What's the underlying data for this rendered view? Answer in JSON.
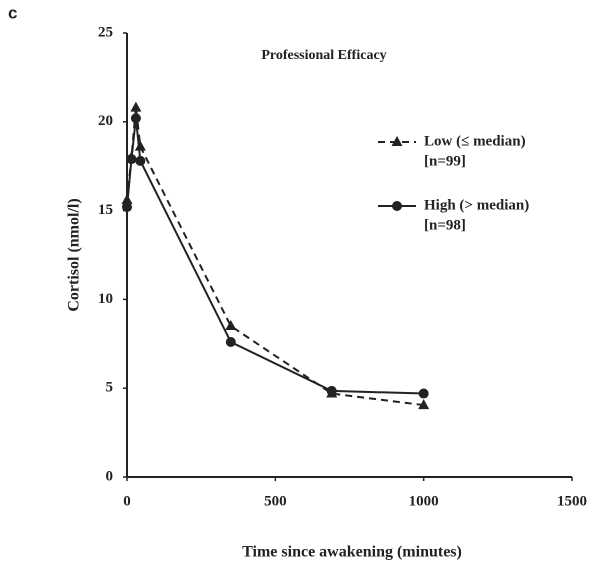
{
  "panel_label": "c",
  "chart_data": {
    "type": "line",
    "title": "Professional Efficacy",
    "x_label": "Time since awakening (minutes)",
    "y_label": "Cortisol (nmol/l)",
    "xlim": [
      0,
      1500
    ],
    "xticks": [
      0,
      500,
      1000,
      1500
    ],
    "ylim": [
      0,
      25
    ],
    "yticks": [
      0,
      5,
      10,
      15,
      20,
      25
    ],
    "series": [
      {
        "name": "Low (≤ median)",
        "n_label": "[n=99]",
        "color": "#222222",
        "dashed": true,
        "marker": "triangle",
        "x": [
          0,
          15,
          30,
          45,
          350,
          690,
          1000
        ],
        "values": [
          15.6,
          18.0,
          20.8,
          18.6,
          8.5,
          4.7,
          4.05
        ]
      },
      {
        "name": "High (> median)",
        "n_label": "[n=98]",
        "color": "#222222",
        "dashed": false,
        "marker": "circle",
        "x": [
          0,
          15,
          30,
          45,
          350,
          690,
          1000
        ],
        "values": [
          15.2,
          17.9,
          20.2,
          17.8,
          7.6,
          4.85,
          4.7
        ]
      }
    ]
  }
}
